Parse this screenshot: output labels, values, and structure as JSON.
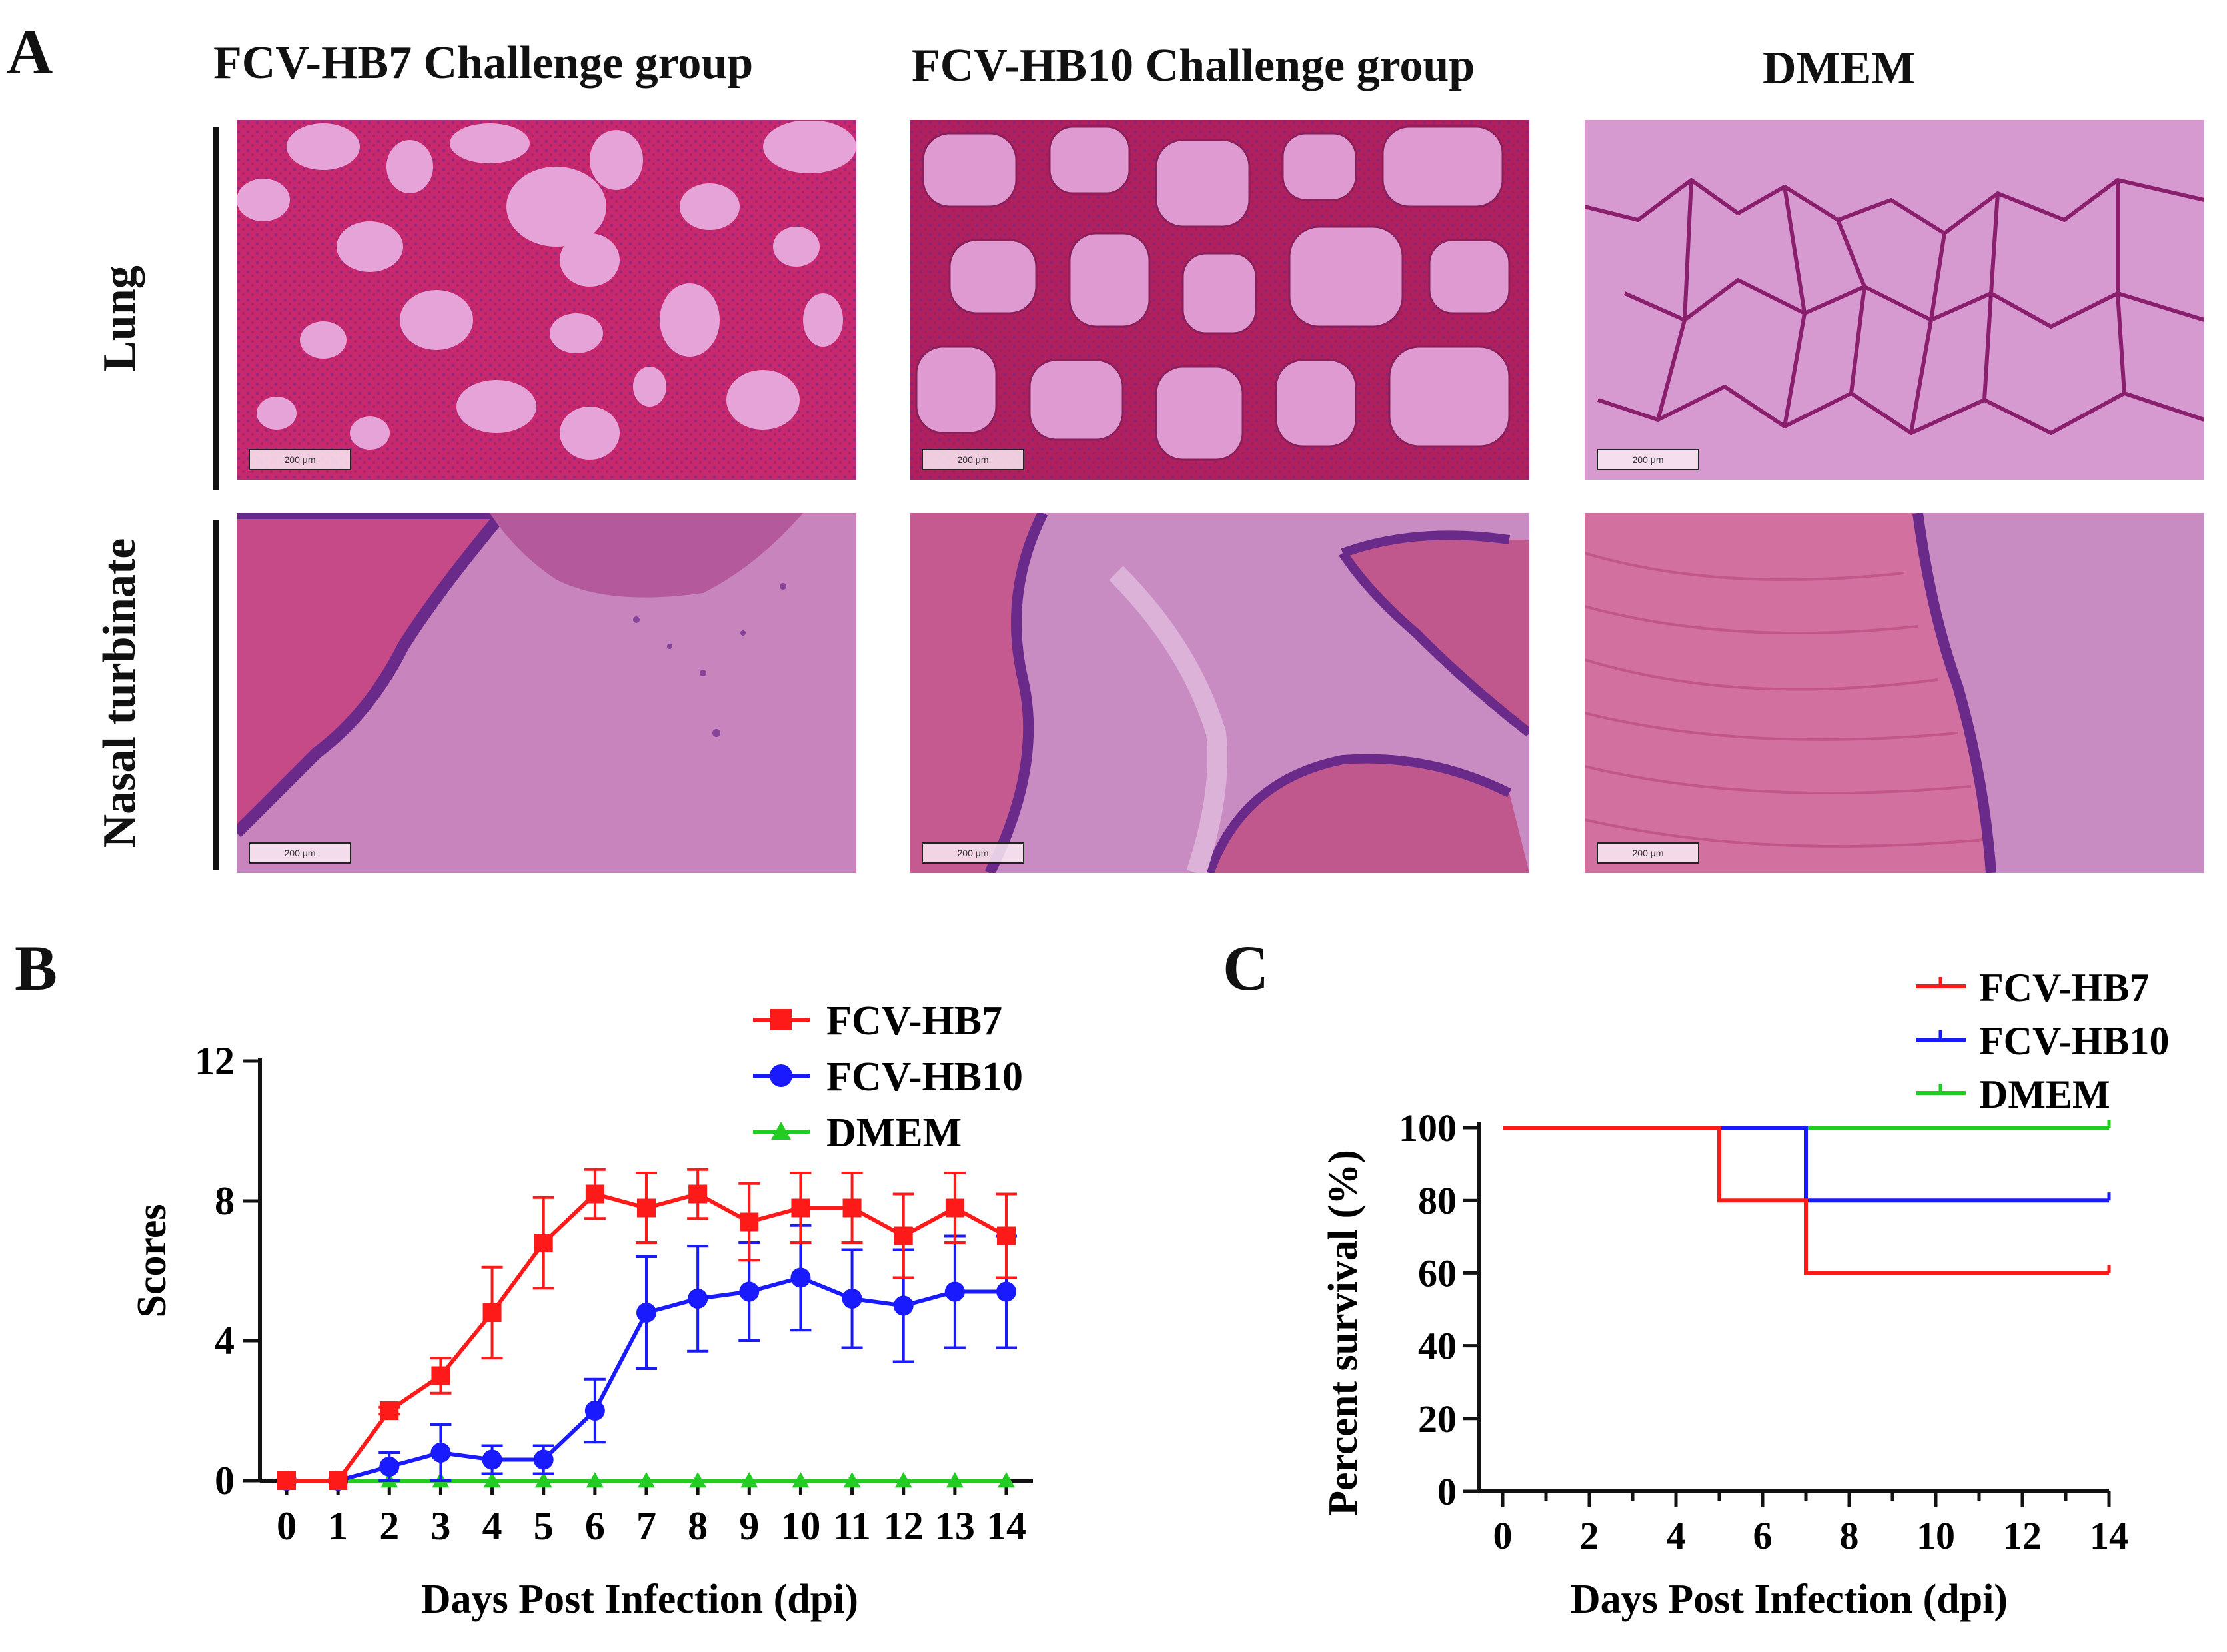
{
  "panel_a": {
    "letter": "A",
    "columns": [
      "FCV-HB7 Challenge group",
      "FCV-HB10 Challenge group",
      "DMEM"
    ],
    "rows": [
      "Lung",
      "Nasal turbinate"
    ],
    "scale_bar_label": "200 μm"
  },
  "chart_data": [
    {
      "panel": "B",
      "type": "line",
      "title": "",
      "xlabel": "Days Post Infection (dpi)",
      "ylabel": "Scores",
      "ylim": [
        0,
        12
      ],
      "yticks": [
        0,
        4,
        8,
        12
      ],
      "x": [
        0,
        1,
        2,
        3,
        4,
        5,
        6,
        7,
        8,
        9,
        10,
        11,
        12,
        13,
        14
      ],
      "series": [
        {
          "name": "FCV-HB7",
          "color": "#ff1a1a",
          "marker": "square",
          "values": [
            0,
            0,
            2,
            3,
            4.8,
            6.8,
            8.2,
            7.8,
            8.2,
            7.4,
            7.8,
            7.8,
            7.0,
            7.8,
            7.0
          ],
          "errors": [
            0,
            0,
            0.1,
            0.5,
            1.3,
            1.3,
            0.7,
            1.0,
            0.7,
            1.1,
            1.0,
            1.0,
            1.2,
            1.0,
            1.2
          ]
        },
        {
          "name": "FCV-HB10",
          "color": "#1a1aff",
          "marker": "circle",
          "values": [
            0,
            0,
            0.4,
            0.8,
            0.6,
            0.6,
            2.0,
            4.8,
            5.2,
            5.4,
            5.8,
            5.2,
            5.0,
            5.4,
            5.4
          ],
          "errors": [
            0,
            0,
            0.4,
            0.8,
            0.4,
            0.4,
            0.9,
            1.6,
            1.5,
            1.4,
            1.5,
            1.4,
            1.6,
            1.6,
            1.6
          ]
        },
        {
          "name": "DMEM",
          "color": "#22cc22",
          "marker": "triangle",
          "values": [
            0,
            0,
            0,
            0,
            0,
            0,
            0,
            0,
            0,
            0,
            0,
            0,
            0,
            0,
            0
          ],
          "errors": [
            0,
            0,
            0,
            0,
            0,
            0,
            0,
            0,
            0,
            0,
            0,
            0,
            0,
            0,
            0
          ]
        }
      ]
    },
    {
      "panel": "C",
      "type": "line",
      "subtype": "survival-step",
      "title": "",
      "xlabel": "Days Post Infection (dpi)",
      "ylabel": "Percent survival (%)",
      "ylim": [
        0,
        100
      ],
      "xlim": [
        0,
        14
      ],
      "yticks": [
        0,
        20,
        40,
        60,
        80,
        100
      ],
      "xticks": [
        0,
        2,
        4,
        6,
        8,
        10,
        12,
        14
      ],
      "series": [
        {
          "name": "FCV-HB7",
          "color": "#ff1a1a",
          "steps": [
            [
              0,
              100
            ],
            [
              5,
              80
            ],
            [
              7,
              60
            ],
            [
              14,
              60
            ]
          ]
        },
        {
          "name": "FCV-HB10",
          "color": "#1a1aff",
          "steps": [
            [
              0,
              100
            ],
            [
              7,
              80
            ],
            [
              14,
              80
            ]
          ]
        },
        {
          "name": "DMEM",
          "color": "#22cc22",
          "steps": [
            [
              0,
              100
            ],
            [
              14,
              100
            ]
          ]
        }
      ]
    }
  ]
}
